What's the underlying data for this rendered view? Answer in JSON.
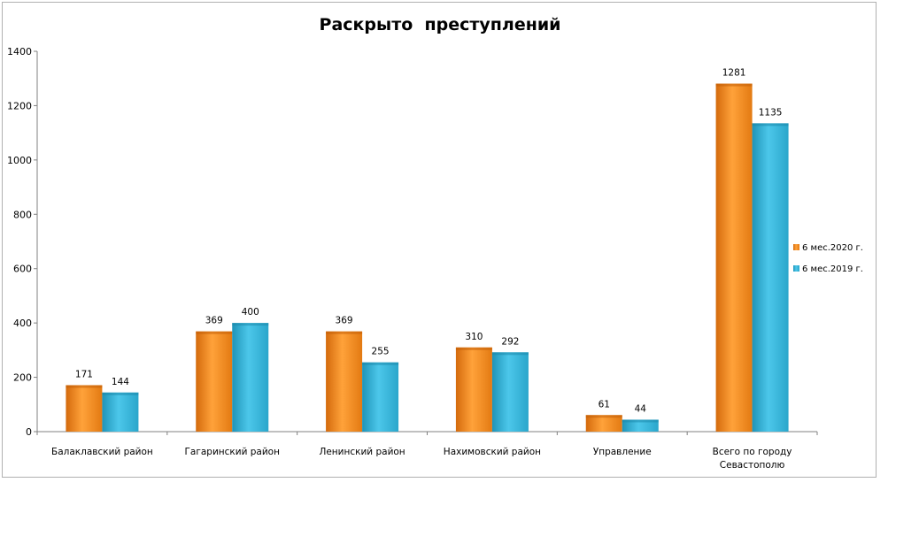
{
  "chart_data": {
    "type": "bar",
    "title": "Раскрыто  преступлений",
    "categories": [
      [
        "Балаклавский район"
      ],
      [
        "Гагаринский район"
      ],
      [
        "Ленинский район"
      ],
      [
        "Нахимовский район"
      ],
      [
        "Управление"
      ],
      [
        "Всего по городу",
        "Севастополю"
      ]
    ],
    "series": [
      {
        "name": "6 мес.2020 г.",
        "values": [
          171,
          369,
          369,
          310,
          61,
          1281
        ],
        "color": "#f08a1e"
      },
      {
        "name": "6 мес.2019 г.",
        "values": [
          144,
          400,
          255,
          292,
          44,
          1135
        ],
        "color": "#2fb4d8"
      }
    ],
    "ylim": [
      0,
      1400
    ],
    "yticks": [
      "0",
      "200",
      "400",
      "600",
      "800",
      "1000",
      "1200",
      "1400"
    ],
    "grid": false,
    "legend_position": "right"
  }
}
